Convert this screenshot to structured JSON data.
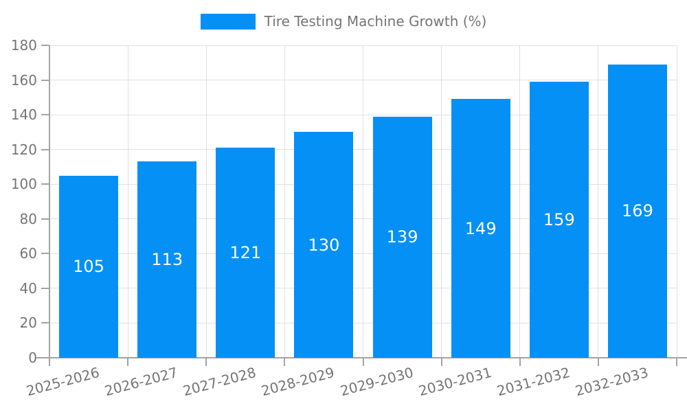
{
  "legend": {
    "label": "Tire Testing Machine Growth (%)"
  },
  "chart_data": {
    "type": "bar",
    "title": "Tire Testing Machine Growth (%)",
    "legend_position": "top-center",
    "categories": [
      "2025-2026",
      "2026-2027",
      "2027-2028",
      "2028-2029",
      "2029-2030",
      "2030-2031",
      "2031-2032",
      "2032-2033"
    ],
    "values": [
      105,
      113,
      121,
      130,
      139,
      149,
      159,
      169
    ],
    "xlabel": "",
    "ylabel": "",
    "ylim": [
      0,
      180
    ],
    "ytick_step": 20,
    "yticks": [
      0,
      20,
      40,
      60,
      80,
      100,
      120,
      140,
      160,
      180
    ],
    "grid": true,
    "value_label_position": "inside-center",
    "x_label_rotation_deg": -15,
    "colors": {
      "bar": "#0590f6",
      "grid": "#e0e0e0",
      "axis": "#a3a3a3",
      "tick_text": "#757575",
      "legend_text": "#757575",
      "value_text": "#ffffff",
      "background": "#ffffff"
    }
  }
}
